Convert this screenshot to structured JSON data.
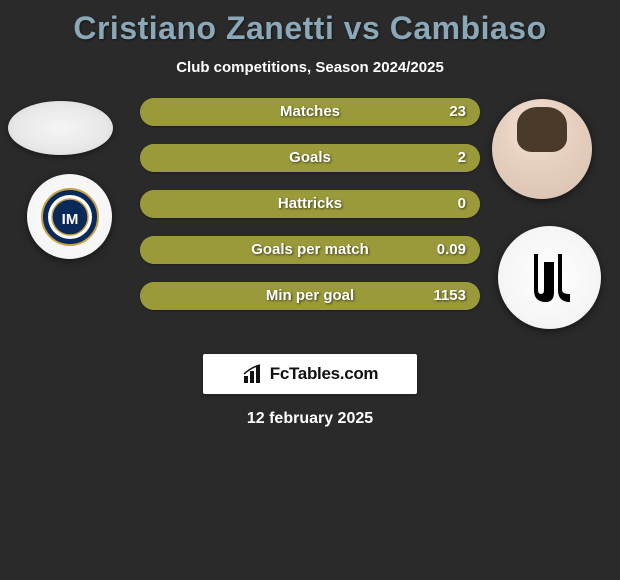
{
  "title": "Cristiano Zanetti vs Cambiaso",
  "subtitle": "Club competitions, Season 2024/2025",
  "date": "12 february 2025",
  "footer_brand": "FcTables.com",
  "colors": {
    "left_fill": "#9a9a3a",
    "right_fill": "#9a9a3a",
    "bg": "#2a2a2a",
    "title_color": "#8aa8b8"
  },
  "stats": [
    {
      "label": "Matches",
      "left_pct": 1,
      "right_pct": 99,
      "right_value": "23"
    },
    {
      "label": "Goals",
      "left_pct": 1,
      "right_pct": 99,
      "right_value": "2"
    },
    {
      "label": "Hattricks",
      "left_pct": 50,
      "right_pct": 50,
      "right_value": "0"
    },
    {
      "label": "Goals per match",
      "left_pct": 1,
      "right_pct": 99,
      "right_value": "0.09"
    },
    {
      "label": "Min per goal",
      "left_pct": 1,
      "right_pct": 99,
      "right_value": "1153"
    }
  ],
  "clubs": {
    "left_name": "inter-milan",
    "right_name": "juventus"
  }
}
